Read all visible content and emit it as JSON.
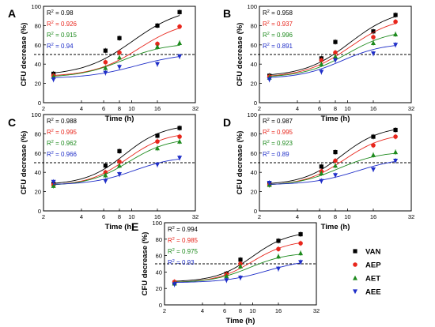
{
  "figure": {
    "legend": [
      {
        "label": "VAN",
        "color": "#000000",
        "marker": "square"
      },
      {
        "label": "AEP",
        "color": "#e8261c",
        "marker": "circle"
      },
      {
        "label": "AET",
        "color": "#1d8a1d",
        "marker": "triangle-up"
      },
      {
        "label": "AEE",
        "color": "#1f2ec8",
        "marker": "triangle-down"
      }
    ]
  },
  "chart_data": [
    {
      "panel": "A",
      "type": "scatter",
      "xlabel": "Time (h)",
      "ylabel": "CFU decrease (%)",
      "xscale": "log2",
      "xticks": [
        "2",
        "4",
        "6",
        "8",
        "10",
        "16",
        "32"
      ],
      "xtick_values": [
        2,
        4,
        6,
        8,
        10,
        16,
        32
      ],
      "xlim": [
        2,
        32
      ],
      "ylim": [
        0,
        100
      ],
      "yticks": [
        "0",
        "20",
        "40",
        "60",
        "80",
        "100"
      ],
      "threshold": 50,
      "x": [
        2.4,
        6.2,
        8.0,
        16.0,
        24.0
      ],
      "series": [
        {
          "name": "VAN",
          "r2": "0.98",
          "values": [
            30,
            54,
            67,
            80,
            94
          ],
          "fit": {
            "low": 28,
            "high": 100,
            "mid": 10.2,
            "k": 2.2
          }
        },
        {
          "name": "AEP",
          "r2": "0.926",
          "values": [
            28,
            42,
            52,
            61,
            79
          ],
          "fit": {
            "low": 27,
            "high": 86,
            "mid": 11.5,
            "k": 2.4
          }
        },
        {
          "name": "AET",
          "r2": "0.915",
          "values": [
            27,
            36,
            47,
            58,
            62
          ],
          "fit": {
            "low": 26,
            "high": 62,
            "mid": 8.5,
            "k": 2.5
          }
        },
        {
          "name": "AEE",
          "r2": "0.94",
          "values": [
            24,
            31,
            37,
            40,
            48
          ],
          "fit": {
            "low": 25,
            "high": 52,
            "mid": 11,
            "k": 2.2
          }
        }
      ]
    },
    {
      "panel": "B",
      "type": "scatter",
      "xlabel": "Time (h)",
      "ylabel": "CFU decrease (%)",
      "xscale": "log2",
      "xticks": [
        "2",
        "4",
        "6",
        "8",
        "10",
        "16",
        "32"
      ],
      "xtick_values": [
        2,
        4,
        6,
        8,
        10,
        16,
        32
      ],
      "xlim": [
        2,
        32
      ],
      "ylim": [
        0,
        100
      ],
      "yticks": [
        "0",
        "20",
        "40",
        "60",
        "80",
        "100"
      ],
      "threshold": 50,
      "x": [
        2.4,
        6.2,
        8.0,
        16.0,
        24.0
      ],
      "series": [
        {
          "name": "VAN",
          "r2": "0.958",
          "values": [
            28,
            46,
            63,
            74,
            91
          ],
          "fit": {
            "low": 27,
            "high": 98,
            "mid": 10.5,
            "k": 2.4
          }
        },
        {
          "name": "AEP",
          "r2": "0.937",
          "values": [
            27,
            44,
            52,
            68,
            84
          ],
          "fit": {
            "low": 26,
            "high": 90,
            "mid": 10.5,
            "k": 2.4
          }
        },
        {
          "name": "AET",
          "r2": "0.996",
          "values": [
            26,
            40,
            48,
            62,
            71
          ],
          "fit": {
            "low": 26,
            "high": 76,
            "mid": 10,
            "k": 2.5
          }
        },
        {
          "name": "AEE",
          "r2": "0.891",
          "values": [
            24,
            32,
            44,
            51,
            60
          ],
          "fit": {
            "low": 25,
            "high": 62,
            "mid": 9,
            "k": 2.6
          }
        }
      ]
    },
    {
      "panel": "C",
      "type": "scatter",
      "xlabel": "Time (h)",
      "ylabel": "CFU decrease (%)",
      "xscale": "log2",
      "xticks": [
        "2",
        "4",
        "6",
        "8",
        "10",
        "16",
        "32"
      ],
      "xtick_values": [
        2,
        4,
        6,
        8,
        10,
        16,
        32
      ],
      "xlim": [
        2,
        32
      ],
      "ylim": [
        0,
        100
      ],
      "yticks": [
        "0",
        "20",
        "40",
        "60",
        "80",
        "100"
      ],
      "threshold": 50,
      "x": [
        2.4,
        6.2,
        8.0,
        16.0,
        24.0
      ],
      "series": [
        {
          "name": "VAN",
          "r2": "0.988",
          "values": [
            28,
            47,
            62,
            78,
            86
          ],
          "fit": {
            "low": 27,
            "high": 90,
            "mid": 8.8,
            "k": 2.8
          }
        },
        {
          "name": "AEP",
          "r2": "0.995",
          "values": [
            27,
            40,
            51,
            72,
            77
          ],
          "fit": {
            "low": 26,
            "high": 82,
            "mid": 9.2,
            "k": 2.8
          }
        },
        {
          "name": "AET",
          "r2": "0.962",
          "values": [
            26,
            37,
            47,
            65,
            72
          ],
          "fit": {
            "low": 26,
            "high": 76,
            "mid": 9.5,
            "k": 2.7
          }
        },
        {
          "name": "AEE",
          "r2": "0.966",
          "values": [
            30,
            31,
            38,
            48,
            55
          ],
          "fit": {
            "low": 27,
            "high": 57,
            "mid": 10.5,
            "k": 2.6
          }
        }
      ]
    },
    {
      "panel": "D",
      "type": "scatter",
      "xlabel": "Time (h)",
      "ylabel": "CFU decrease (%)",
      "xscale": "log2",
      "xticks": [
        "2",
        "4",
        "6",
        "8",
        "10",
        "16",
        "32"
      ],
      "xtick_values": [
        2,
        4,
        6,
        8,
        10,
        16,
        32
      ],
      "xlim": [
        2,
        32
      ],
      "ylim": [
        0,
        100
      ],
      "yticks": [
        "0",
        "20",
        "40",
        "60",
        "80",
        "100"
      ],
      "threshold": 50,
      "x": [
        2.4,
        6.2,
        8.0,
        16.0,
        24.0
      ],
      "series": [
        {
          "name": "VAN",
          "r2": "0.987",
          "values": [
            28,
            46,
            61,
            77,
            84
          ],
          "fit": {
            "low": 27,
            "high": 88,
            "mid": 9,
            "k": 2.8
          }
        },
        {
          "name": "AEP",
          "r2": "0.995",
          "values": [
            27,
            41,
            52,
            68,
            77
          ],
          "fit": {
            "low": 26,
            "high": 81,
            "mid": 9.5,
            "k": 2.7
          }
        },
        {
          "name": "AET",
          "r2": "0.923",
          "values": [
            27,
            39,
            47,
            58,
            61
          ],
          "fit": {
            "low": 26,
            "high": 62,
            "mid": 8.5,
            "k": 2.6
          }
        },
        {
          "name": "AEE",
          "r2": "0.89",
          "values": [
            29,
            31,
            37,
            43,
            52
          ],
          "fit": {
            "low": 27,
            "high": 56,
            "mid": 12,
            "k": 2.4
          }
        }
      ]
    },
    {
      "panel": "E",
      "type": "scatter",
      "xlabel": "Time (h)",
      "ylabel": "CFU decrease (%)",
      "xscale": "log2",
      "xticks": [
        "2",
        "4",
        "6",
        "8",
        "10",
        "16",
        "32"
      ],
      "xtick_values": [
        2,
        4,
        6,
        8,
        10,
        16,
        32
      ],
      "xlim": [
        2,
        32
      ],
      "ylim": [
        0,
        100
      ],
      "yticks": [
        "0",
        "20",
        "40",
        "60",
        "80",
        "100"
      ],
      "threshold": 50,
      "x": [
        2.4,
        6.2,
        8.0,
        16.0,
        24.0
      ],
      "series": [
        {
          "name": "VAN",
          "r2": "0.994",
          "values": [
            27,
            38,
            55,
            78,
            86
          ],
          "fit": {
            "low": 28,
            "high": 90,
            "mid": 10,
            "k": 3.0
          }
        },
        {
          "name": "AEP",
          "r2": "0.985",
          "values": [
            28,
            37,
            50,
            68,
            75
          ],
          "fit": {
            "low": 27,
            "high": 79,
            "mid": 10,
            "k": 3.0
          }
        },
        {
          "name": "AET",
          "r2": "0.975",
          "values": [
            26,
            35,
            47,
            59,
            63
          ],
          "fit": {
            "low": 27,
            "high": 64,
            "mid": 9.5,
            "k": 2.9
          }
        },
        {
          "name": "AEE",
          "r2": "0.93",
          "values": [
            25,
            30,
            33,
            44,
            52
          ],
          "fit": {
            "low": 27,
            "high": 56,
            "mid": 13,
            "k": 2.6
          }
        }
      ]
    }
  ]
}
